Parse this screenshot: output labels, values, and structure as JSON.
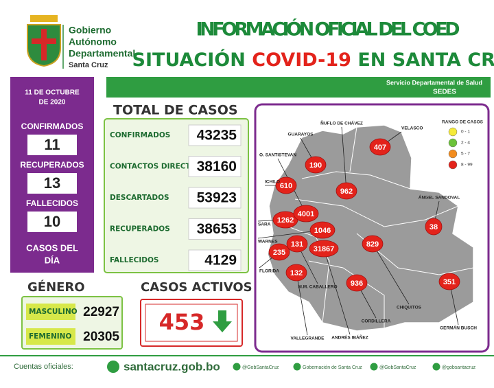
{
  "header": {
    "org": [
      "Gobierno",
      "Autónomo",
      "Departamental",
      "Santa Cruz"
    ],
    "title_line1": "INFORMACIÓN OFICIAL DEL COED",
    "title_line2_a": "SITUACIÓN",
    "title_line2_b": "COVID-19",
    "title_line2_c": "EN SANTA CRUZ",
    "service": "Servicio Departamental de Salud",
    "service_short": "SEDES"
  },
  "daily": {
    "date_line1": "11 DE OCTUBRE",
    "date_line2": "DE 2020",
    "items": [
      {
        "label": "CONFIRMADOS",
        "value": 11
      },
      {
        "label": "RECUPERADOS",
        "value": 13
      },
      {
        "label": "FALLECIDOS",
        "value": 10
      }
    ],
    "caption_line1": "CASOS DEL",
    "caption_line2": "DÍA"
  },
  "totals": {
    "title": "TOTAL DE CASOS",
    "rows": [
      {
        "label": "CONFIRMADOS",
        "value": 43235
      },
      {
        "label": "CONTACTOS DIRECTOS",
        "value": 38160
      },
      {
        "label": "DESCARTADOS",
        "value": 53923
      },
      {
        "label": "RECUPERADOS",
        "value": 38653
      },
      {
        "label": "FALLECIDOS",
        "value": 4129
      }
    ]
  },
  "gender": {
    "title": "GÉNERO",
    "rows": [
      {
        "label": "MASCULINO",
        "value": 22927
      },
      {
        "label": "FEMENINO",
        "value": 20305
      }
    ]
  },
  "active": {
    "title": "CASOS ACTIVOS",
    "value": 453
  },
  "map": {
    "legend": {
      "title": "RANGO DE CASOS",
      "items": [
        {
          "label": "0 - 1",
          "color": "#f5ea3a"
        },
        {
          "label": "2 - 4",
          "color": "#6cc23a"
        },
        {
          "label": "5 - 7",
          "color": "#f28c1e"
        },
        {
          "label": "8 - 99",
          "color": "#e3231b"
        }
      ]
    },
    "regions": [
      {
        "name": "GUARAYOS",
        "value": 190
      },
      {
        "name": "ÑUFLO DE CHÁVEZ",
        "value": 962
      },
      {
        "name": "VELASCO",
        "value": 407
      },
      {
        "name": "ICHILO",
        "value": 610
      },
      {
        "name": "SARA",
        "value": 1262
      },
      {
        "name": "O. SANTISTEVAN",
        "value": 4001
      },
      {
        "name": "WARNES",
        "value": 1046
      },
      {
        "name": "M.M. CABALLERO",
        "value": 131
      },
      {
        "name": "ANDRÉS IBÁÑEZ",
        "value": 31867
      },
      {
        "name": "FLORIDA",
        "value": 235
      },
      {
        "name": "VALLEGRANDE",
        "value": 132
      },
      {
        "name": "CHIQUITOS",
        "value": 829
      },
      {
        "name": "ÁNGEL SANDOVAL",
        "value": 38
      },
      {
        "name": "CORDILLERA",
        "value": 936
      },
      {
        "name": "GERMÁN BUSCH",
        "value": 351
      }
    ]
  },
  "footer": {
    "label": "Cuentas oficiales:",
    "site": "santacruz.gob.bo",
    "accounts": [
      "@GobSantaCruz",
      "Gobernación de Santa Cruz",
      "@GobSantaCruz",
      "@gobsantacruz"
    ]
  }
}
